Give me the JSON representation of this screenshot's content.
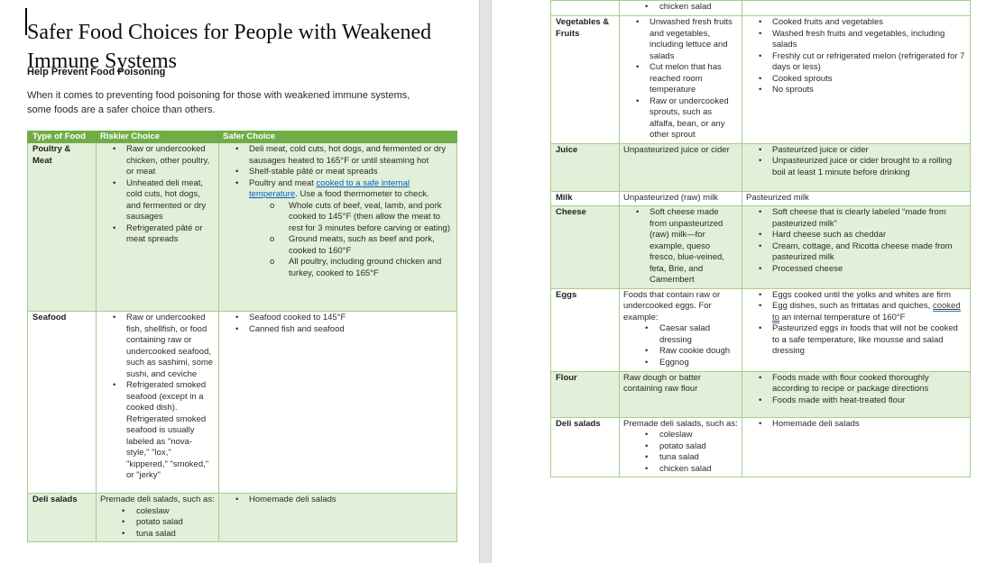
{
  "colors": {
    "header_bg": "#70ad47",
    "row_band_bg": "#e2efd9",
    "table_border": "#a5cd8c",
    "link_blue": "#0563c1"
  },
  "document": {
    "title": "Safer Food Choices for People with Weakened Immune Systems",
    "heading": "Help Prevent Food Poisoning",
    "intro": "When it comes to preventing food poisoning for those with weakened immune systems, some foods are a safer choice than others."
  },
  "table": {
    "headers": [
      "Type of Food",
      "Riskier Choice",
      "Safer Choice"
    ],
    "left_rows": [
      {
        "label": "Poultry & Meat",
        "shaded": true,
        "riskier": [
          {
            "k": "b1",
            "t": "Raw or undercooked chicken, other poultry, or meat"
          },
          {
            "k": "b1",
            "t": "Unheated deli meat, cold cuts, hot dogs, and fermented or dry sausages"
          },
          {
            "k": "b1",
            "t": "Refrigerated pâté or meat spreads"
          }
        ],
        "safer": [
          {
            "k": "b1",
            "t": "Deli meat, cold cuts, hot dogs, and fermented or dry sausages heated to 165°F or until steaming hot"
          },
          {
            "k": "b1",
            "t": "Shelf-stable pâté or meat spreads"
          },
          {
            "k": "b1",
            "parts": [
              {
                "t": "Poultry and meat "
              },
              {
                "t": "cooked to a safe internal temperature",
                "link": 1,
                "name": "safe-internal-temperature-link"
              },
              {
                "t": ". Use a food thermometer to check."
              }
            ]
          },
          {
            "k": "b2",
            "t": "Whole cuts of beef, veal, lamb, and pork cooked to 145°F (then allow the meat to rest for 3 minutes before carving or eating)"
          },
          {
            "k": "b2",
            "t": "Ground meats, such as beef and pork, cooked to 160°F"
          },
          {
            "k": "b2",
            "t": "All poultry, including ground chicken and turkey, cooked to 165°F"
          }
        ]
      },
      {
        "label": "Seafood",
        "shaded": false,
        "riskier": [
          {
            "k": "b1",
            "t": "Raw or undercooked fish, shellfish, or food containing raw or undercooked seafood, such as sashimi, some sushi, and ceviche"
          },
          {
            "k": "b1",
            "t": "Refrigerated smoked seafood (except in a cooked dish). Refrigerated smoked seafood is usually labeled as \"nova-style,\" \"lox,\" \"kippered,\" \"smoked,\" or \"jerky\""
          }
        ],
        "safer": [
          {
            "k": "b1",
            "t": "Seafood cooked to 145°F"
          },
          {
            "k": "b1",
            "t": "Canned fish and seafood"
          }
        ]
      },
      {
        "label": "Deli salads",
        "shaded": true,
        "riskier": [
          {
            "k": "p",
            "t": "Premade deli salads, such as:"
          },
          {
            "k": "b1i",
            "t": "coleslaw"
          },
          {
            "k": "b1i",
            "t": "potato salad"
          },
          {
            "k": "b1i",
            "t": "tuna salad"
          }
        ],
        "safer": [
          {
            "k": "b1",
            "t": "Homemade deli salads"
          }
        ]
      }
    ],
    "right_rows": [
      {
        "label": "",
        "shaded": false,
        "riskier": [
          {
            "k": "b1i",
            "t": "chicken salad"
          }
        ],
        "safer": []
      },
      {
        "label": "Vegetables & Fruits",
        "shaded": false,
        "riskier": [
          {
            "k": "b1",
            "t": "Unwashed fresh fruits and vegetables, including lettuce and salads"
          },
          {
            "k": "b1",
            "t": "Cut melon that has reached room temperature"
          },
          {
            "k": "b1",
            "t": "Raw or undercooked sprouts, such as alfalfa, bean, or any other sprout"
          }
        ],
        "safer": [
          {
            "k": "b1",
            "t": "Cooked fruits and vegetables"
          },
          {
            "k": "b1",
            "t": "Washed fresh fruits and vegetables, including salads"
          },
          {
            "k": "b1",
            "t": "Freshly cut or refrigerated melon (refrigerated for 7 days or less)"
          },
          {
            "k": "b1",
            "t": "Cooked sprouts"
          },
          {
            "k": "b1",
            "t": "No sprouts"
          }
        ]
      },
      {
        "label": "Juice",
        "shaded": true,
        "riskier": [
          {
            "k": "p",
            "t": "Unpasteurized juice or cider"
          }
        ],
        "safer": [
          {
            "k": "b1",
            "t": "Pasteurized juice or cider"
          },
          {
            "k": "b1",
            "t": "Unpasteurized juice or cider brought to a rolling boil at least 1 minute before drinking"
          }
        ]
      },
      {
        "label": "Milk",
        "shaded": false,
        "riskier": [
          {
            "k": "p",
            "t": "Unpasteurized (raw) milk"
          }
        ],
        "safer": [
          {
            "k": "p",
            "t": "Pasteurized milk"
          }
        ]
      },
      {
        "label": "Cheese",
        "shaded": true,
        "riskier": [
          {
            "k": "b1",
            "t": "Soft cheese made from unpasteurized (raw) milk—for example, queso fresco, blue-veined, feta, Brie, and Camembert"
          }
        ],
        "safer": [
          {
            "k": "b1",
            "t": "Soft cheese that is clearly labeled “made from pasteurized milk”"
          },
          {
            "k": "b1",
            "t": "Hard cheese such as cheddar"
          },
          {
            "k": "b1",
            "t": "Cream, cottage, and Ricotta cheese made from pasteurized milk"
          },
          {
            "k": "b1",
            "t": "Processed cheese"
          }
        ]
      },
      {
        "label": "Eggs",
        "shaded": false,
        "riskier": [
          {
            "k": "p",
            "t": "Foods that contain raw or undercooked eggs. For example:"
          },
          {
            "k": "b1i",
            "t": "Caesar salad dressing"
          },
          {
            "k": "b1i",
            "t": "Raw cookie dough"
          },
          {
            "k": "b1i",
            "t": "Eggnog"
          }
        ],
        "safer": [
          {
            "k": "b1",
            "t": "Eggs cooked until the yolks and whites are firm"
          },
          {
            "k": "b1",
            "parts": [
              {
                "t": "Egg dishes, such as frittatas and quiches, "
              },
              {
                "t": "cooked to",
                "link": 2,
                "name": "cooked-to-temperature-link"
              },
              {
                "t": " an internal temperature of 160°F"
              }
            ]
          },
          {
            "k": "b1",
            "t": "Pasteurized eggs in foods that will not be cooked to a safe temperature, like mousse and salad dressing"
          }
        ]
      },
      {
        "label": "Flour",
        "shaded": true,
        "riskier": [
          {
            "k": "p",
            "t": "Raw dough or batter containing raw flour"
          }
        ],
        "safer": [
          {
            "k": "b1",
            "t": "Foods made with flour cooked thoroughly according to recipe or package directions"
          },
          {
            "k": "b1",
            "t": "Foods made with heat-treated flour"
          }
        ]
      },
      {
        "label": "Deli salads",
        "shaded": false,
        "riskier": [
          {
            "k": "p",
            "t": "Premade deli salads, such as:"
          },
          {
            "k": "b1i",
            "t": "coleslaw"
          },
          {
            "k": "b1i",
            "t": "potato salad"
          },
          {
            "k": "b1i",
            "t": "tuna salad"
          },
          {
            "k": "b1i",
            "t": "chicken salad"
          }
        ],
        "safer": [
          {
            "k": "b1",
            "t": "Homemade deli salads"
          }
        ]
      }
    ]
  }
}
